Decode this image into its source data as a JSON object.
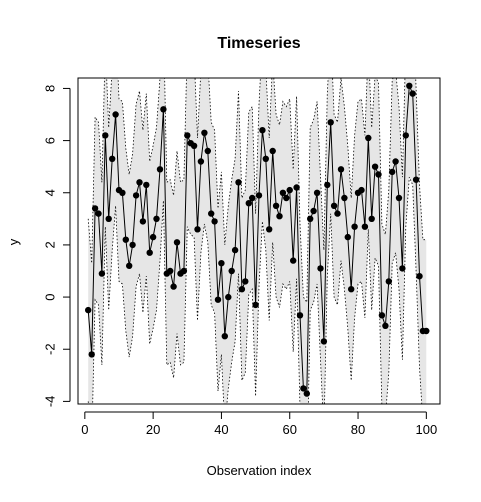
{
  "chart_data": {
    "type": "line",
    "title": "Timeseries",
    "xlabel": "Observation index",
    "ylabel": "y",
    "xlim": [
      -2,
      104
    ],
    "ylim": [
      -4.1,
      8.4
    ],
    "xticks": [
      0,
      20,
      40,
      60,
      80,
      100
    ],
    "yticks": [
      -4,
      -2,
      0,
      2,
      4,
      6,
      8
    ],
    "grid": false,
    "legend": "none",
    "colors": {
      "line": "#000000",
      "band": "#e6e6e6",
      "bound": "#000000"
    },
    "band_halfwidth": 3.5,
    "series": [
      {
        "x": [
          1,
          2,
          3,
          4,
          5,
          6,
          7,
          8,
          9,
          10,
          11,
          12,
          13,
          14,
          15,
          16,
          17,
          18,
          19,
          20,
          21,
          22,
          23,
          24,
          25,
          26,
          27,
          28,
          29,
          30,
          31,
          32,
          33,
          34,
          35,
          36,
          37,
          38,
          39,
          40,
          41,
          42,
          43,
          44,
          45,
          46,
          47,
          48,
          49,
          50,
          51,
          52,
          53,
          54,
          55,
          56,
          57,
          58,
          59,
          60,
          61,
          62,
          63,
          64,
          65,
          66,
          67,
          68,
          69,
          70,
          71,
          72,
          73,
          74,
          75,
          76,
          77,
          78,
          79,
          80,
          81,
          82,
          83,
          84,
          85,
          86,
          87,
          88,
          89,
          90,
          91,
          92,
          93,
          94,
          95,
          96,
          97,
          98,
          99,
          100
        ],
        "values": [
          -0.5,
          -2.2,
          3.4,
          3.2,
          0.9,
          6.2,
          3.0,
          5.3,
          7.0,
          4.1,
          4.0,
          2.2,
          1.2,
          2.0,
          3.9,
          4.4,
          2.9,
          4.3,
          1.7,
          2.3,
          3.0,
          4.9,
          7.2,
          0.9,
          1.0,
          0.4,
          2.1,
          0.9,
          1.0,
          6.2,
          5.9,
          5.8,
          2.6,
          5.2,
          6.3,
          5.6,
          3.2,
          2.9,
          -0.1,
          1.3,
          -1.5,
          0.0,
          1.0,
          1.8,
          4.4,
          0.3,
          0.6,
          3.6,
          3.8,
          -0.3,
          3.9,
          6.4,
          5.3,
          2.6,
          5.6,
          3.5,
          3.1,
          4.0,
          3.8,
          4.1,
          1.4,
          4.2,
          -0.7,
          -3.5,
          -3.7,
          3.0,
          3.3,
          4.0,
          1.1,
          -1.7,
          4.3,
          6.7,
          3.5,
          3.2,
          4.9,
          3.8,
          2.3,
          0.3,
          2.7,
          4.0,
          4.1,
          2.7,
          6.1,
          3.0,
          5.0,
          4.7,
          -0.7,
          -1.1,
          0.6,
          4.8,
          5.2,
          3.8,
          1.1,
          6.2,
          8.1,
          7.8,
          4.5,
          0.8,
          -1.3,
          -1.3
        ]
      }
    ]
  }
}
